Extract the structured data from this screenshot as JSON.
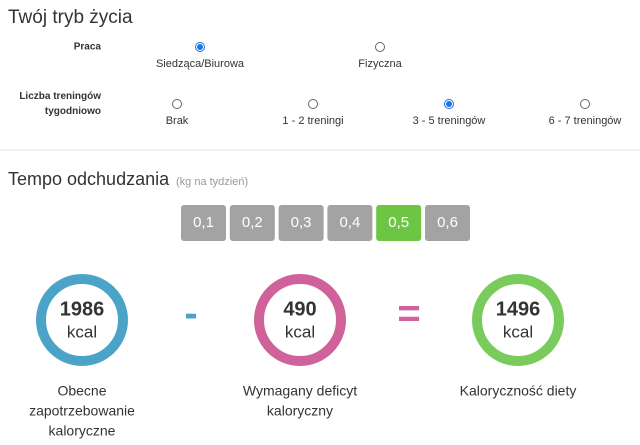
{
  "title": "Twój tryb życia",
  "lifestyle": {
    "work": {
      "label": [
        "Praca"
      ],
      "options": [
        "Siedząca/Biurowa",
        "Fizyczna"
      ],
      "selected": 0
    },
    "trainings": {
      "label": [
        "Liczba treningów",
        "tygodniowo"
      ],
      "options": [
        "Brak",
        "1 - 2 treningi",
        "3 - 5 treningów",
        "6 - 7 treningów"
      ],
      "selected": 2
    }
  },
  "pace": {
    "title": "Tempo odchudzania",
    "unit": "(kg na tydzień)",
    "options": [
      "0,1",
      "0,2",
      "0,3",
      "0,4",
      "0,5",
      "0,6"
    ],
    "selected": 4
  },
  "results": [
    {
      "value": 1986,
      "unit": "kcal",
      "color": "#4ba3c7",
      "caption": [
        "Obecne",
        "zapotrzebowanie",
        "kaloryczne"
      ]
    },
    {
      "value": 490,
      "unit": "kcal",
      "color": "#d0629b",
      "caption": [
        "Wymagany deficyt",
        "kaloryczny"
      ]
    },
    {
      "value": 1496,
      "unit": "kcal",
      "color": "#79cc5b",
      "caption": [
        "Kaloryczność diety"
      ]
    }
  ],
  "operators": [
    "-",
    "="
  ]
}
